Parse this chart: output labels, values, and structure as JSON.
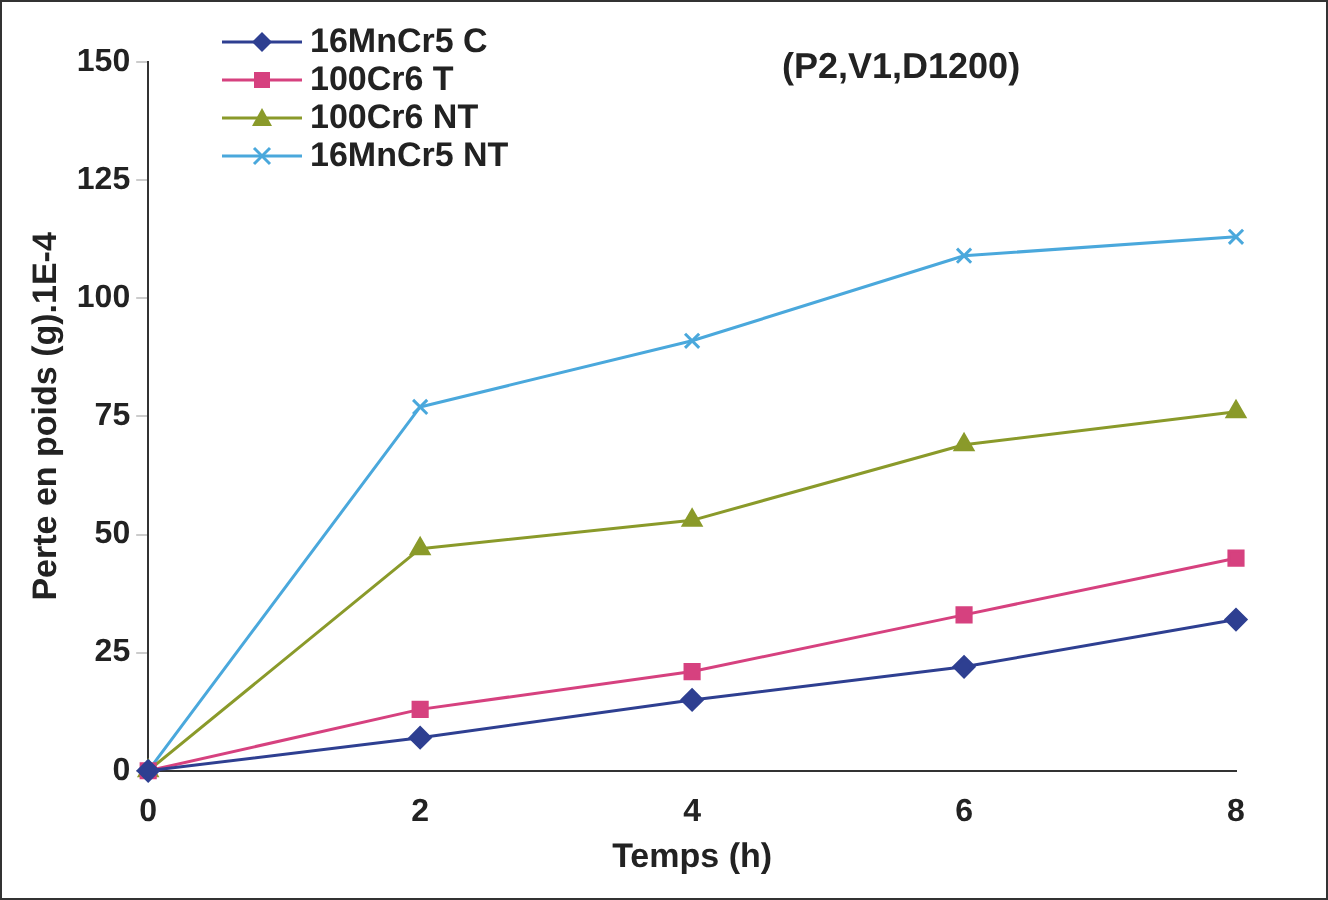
{
  "chart_data": {
    "type": "line",
    "xlabel": "Temps (h)",
    "ylabel": "Perte en poids (g).1E-4",
    "annotations": [
      "(P2,V1,D1200)"
    ],
    "x": [
      0,
      2,
      4,
      6,
      8
    ],
    "series": [
      {
        "name": "16MnCr5 C",
        "color": "#2e3f91",
        "marker": "diamond",
        "values": [
          0,
          7,
          15,
          22,
          32
        ]
      },
      {
        "name": "100Cr6 T",
        "color": "#d6417f",
        "marker": "square",
        "values": [
          0,
          13,
          21,
          33,
          45
        ]
      },
      {
        "name": "100Cr6 NT",
        "color": "#8a9a2a",
        "marker": "triangle",
        "values": [
          0,
          47,
          53,
          69,
          76
        ]
      },
      {
        "name": "16MnCr5 NT",
        "color": "#4aa8dc",
        "marker": "cross",
        "values": [
          0,
          77,
          91,
          109,
          113
        ]
      }
    ],
    "xlim": [
      0,
      8
    ],
    "xticks": [
      0,
      2,
      4,
      6,
      8
    ],
    "ylim": [
      0,
      150
    ],
    "yticks": [
      0,
      25,
      50,
      75,
      100,
      125,
      150
    ],
    "grid": false,
    "legend": "top left",
    "line_style": "solid"
  }
}
